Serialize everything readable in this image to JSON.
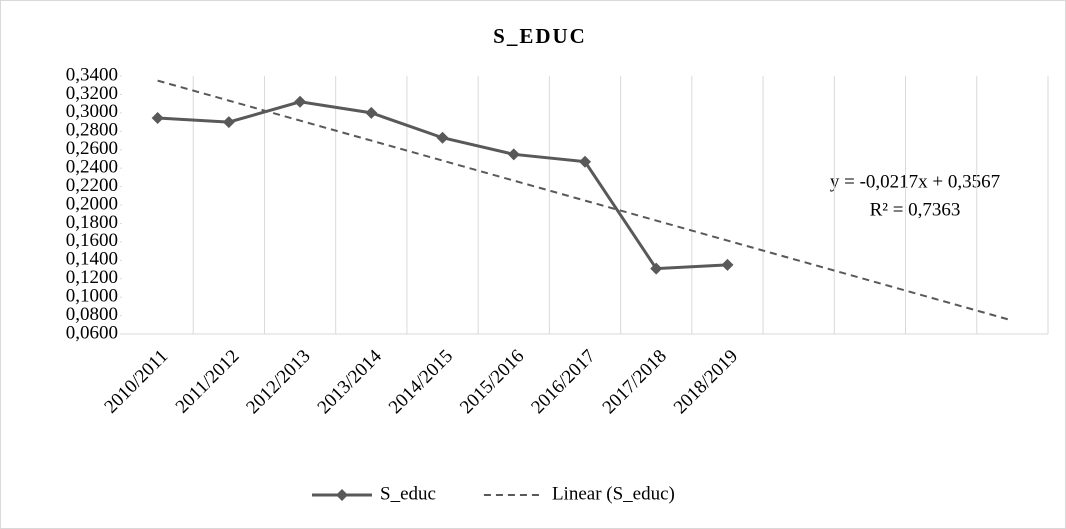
{
  "chart_data": {
    "type": "line",
    "title": "S_EDUC",
    "categories": [
      "2010/2011",
      "2011/2012",
      "2012/2013",
      "2013/2014",
      "2014/2015",
      "2015/2016",
      "2016/2017",
      "2017/2018",
      "2018/2019",
      null,
      null,
      null,
      null
    ],
    "series": [
      {
        "name": "S_educ",
        "color": "#595959",
        "values": [
          0.2944,
          0.29,
          0.312,
          0.3,
          0.273,
          0.255,
          0.247,
          0.131,
          0.135,
          null,
          null,
          null,
          null
        ]
      },
      {
        "name": "Linear (S_educ)",
        "color": "#595959",
        "dashed": true,
        "values": [
          0.335,
          0.3133,
          0.2916,
          0.2699,
          0.2482,
          0.2265,
          0.2048,
          0.1831,
          0.1614,
          0.1397,
          0.118,
          0.0963,
          0.0746
        ]
      }
    ],
    "annotations": [
      "y = -0,0217x + 0,3567",
      "R² = 0,7363"
    ],
    "ylim": [
      0.06,
      0.34
    ],
    "yticks": [
      {
        "value": 0.06,
        "label": "0,0600"
      },
      {
        "value": 0.08,
        "label": "0,0800"
      },
      {
        "value": 0.1,
        "label": "0,1000"
      },
      {
        "value": 0.12,
        "label": "0,1200"
      },
      {
        "value": 0.14,
        "label": "0,1400"
      },
      {
        "value": 0.16,
        "label": "0,1600"
      },
      {
        "value": 0.18,
        "label": "0,1800"
      },
      {
        "value": 0.2,
        "label": "0,2000"
      },
      {
        "value": 0.22,
        "label": "0,2200"
      },
      {
        "value": 0.24,
        "label": "0,2400"
      },
      {
        "value": 0.26,
        "label": "0,2600"
      },
      {
        "value": 0.28,
        "label": "0,2800"
      },
      {
        "value": 0.3,
        "label": "0,3000"
      },
      {
        "value": 0.32,
        "label": "0,3200"
      },
      {
        "value": 0.34,
        "label": "0,3400"
      }
    ],
    "grid": "vertical",
    "legend": "bottom"
  }
}
